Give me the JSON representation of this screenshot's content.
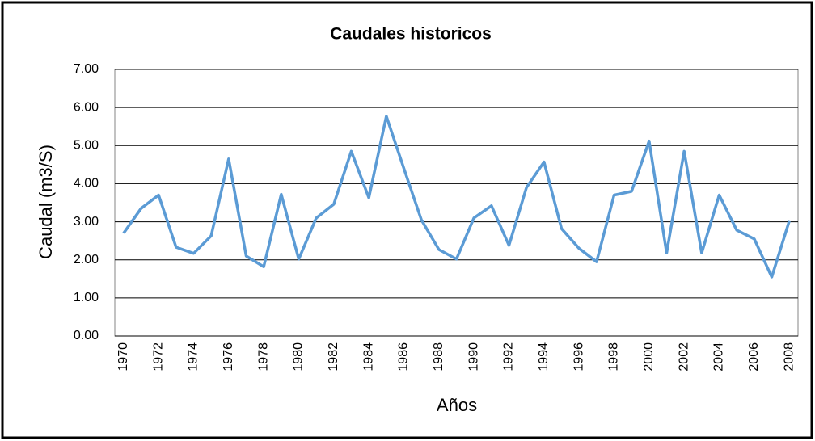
{
  "chart_data": {
    "type": "line",
    "title": "Caudales historicos",
    "x_label": "Años",
    "y_label": "Caudal (m3/S)",
    "categories": [
      "1970",
      null,
      "1972",
      null,
      "1974",
      null,
      "1976",
      null,
      "1978",
      null,
      "1980",
      null,
      "1982",
      null,
      "1984",
      null,
      "1986",
      null,
      "1988",
      null,
      "1990",
      null,
      "1992",
      null,
      "1994",
      null,
      "1996",
      null,
      "1998",
      null,
      "2000",
      null,
      "2002",
      null,
      "2004",
      null,
      "2006",
      null,
      "2008"
    ],
    "series": [
      {
        "name": "Caudal",
        "color": "#5b9bd5",
        "values": [
          2.7,
          3.35,
          3.7,
          2.33,
          2.17,
          2.63,
          4.65,
          2.1,
          1.82,
          3.72,
          2.02,
          3.1,
          3.46,
          4.85,
          3.63,
          5.77,
          4.4,
          3.05,
          2.27,
          2.02,
          3.1,
          3.42,
          2.38,
          3.9,
          4.57,
          2.82,
          2.3,
          1.95,
          3.7,
          3.8,
          5.12,
          2.18,
          4.85,
          2.18,
          3.7,
          2.78,
          2.55,
          1.55,
          3.02
        ]
      }
    ],
    "ylim": [
      0,
      7
    ],
    "yticks": [
      {
        "value": 0,
        "label": "0.00"
      },
      {
        "value": 1,
        "label": "1.00"
      },
      {
        "value": 2,
        "label": "2.00"
      },
      {
        "value": 3,
        "label": "3.00"
      },
      {
        "value": 4,
        "label": "4.00"
      },
      {
        "value": 5,
        "label": "5.00"
      },
      {
        "value": 6,
        "label": "6.00"
      },
      {
        "value": 7,
        "label": "7.00"
      }
    ],
    "grid": true,
    "legend": false
  }
}
